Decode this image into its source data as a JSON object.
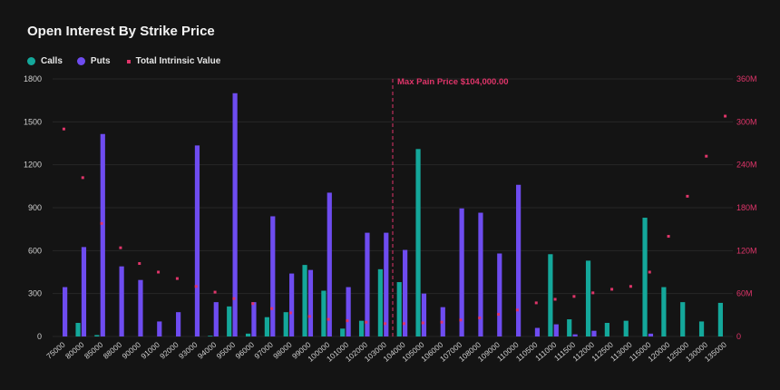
{
  "title": "Open Interest By Strike Price",
  "legend": {
    "calls": "Calls",
    "puts": "Puts",
    "intrinsic": "Total Intrinsic Value"
  },
  "colors": {
    "calls": "#14a89b",
    "puts": "#6e4cf0",
    "intrinsic": "#e0356a",
    "background": "#141414",
    "grid": "#262626"
  },
  "max_pain_label": "Max Pain Price $104,000.00",
  "chart_data": {
    "type": "bar",
    "title": "Open Interest By Strike Price",
    "categories": [
      "75000",
      "80000",
      "85000",
      "88000",
      "90000",
      "91000",
      "92000",
      "93000",
      "94000",
      "95000",
      "96000",
      "97000",
      "98000",
      "99000",
      "100000",
      "101000",
      "102000",
      "103000",
      "104000",
      "105000",
      "106000",
      "107000",
      "108000",
      "109000",
      "110000",
      "110500",
      "111000",
      "111500",
      "112000",
      "112500",
      "113000",
      "115000",
      "120000",
      "125000",
      "130000",
      "135000"
    ],
    "series": [
      {
        "name": "Calls",
        "values": [
          0,
          95,
          10,
          0,
          0,
          0,
          0,
          0,
          5,
          210,
          20,
          135,
          170,
          500,
          320,
          55,
          110,
          470,
          380,
          1310,
          0,
          0,
          0,
          0,
          0,
          0,
          575,
          120,
          530,
          95,
          110,
          830,
          345,
          240,
          105,
          235
        ]
      },
      {
        "name": "Puts",
        "values": [
          345,
          625,
          1415,
          490,
          395,
          105,
          170,
          1335,
          240,
          1700,
          240,
          840,
          440,
          465,
          1005,
          345,
          725,
          725,
          605,
          300,
          205,
          895,
          865,
          580,
          1060,
          60,
          85,
          15,
          40,
          0,
          0,
          20,
          0,
          0,
          0,
          0
        ]
      },
      {
        "name": "Total Intrinsic Value",
        "axis": "right",
        "values": [
          290,
          222,
          158,
          124,
          102,
          90,
          81,
          70,
          62,
          53,
          46,
          39,
          33,
          28,
          24,
          22,
          20,
          18,
          18,
          19,
          20,
          23,
          26,
          31,
          37,
          47,
          52,
          56,
          61,
          66,
          70,
          90,
          140,
          196,
          252,
          308
        ]
      }
    ],
    "ylim_left": [
      0,
      1800
    ],
    "yticks_left": [
      "0",
      "300",
      "600",
      "900",
      "1200",
      "1500",
      "1800"
    ],
    "ylim_right": [
      0,
      360
    ],
    "yticks_right": [
      "0",
      "60M",
      "120M",
      "180M",
      "240M",
      "300M",
      "360M"
    ],
    "max_pain_strike": "104000",
    "grid": true,
    "legend_position": "top-left"
  }
}
